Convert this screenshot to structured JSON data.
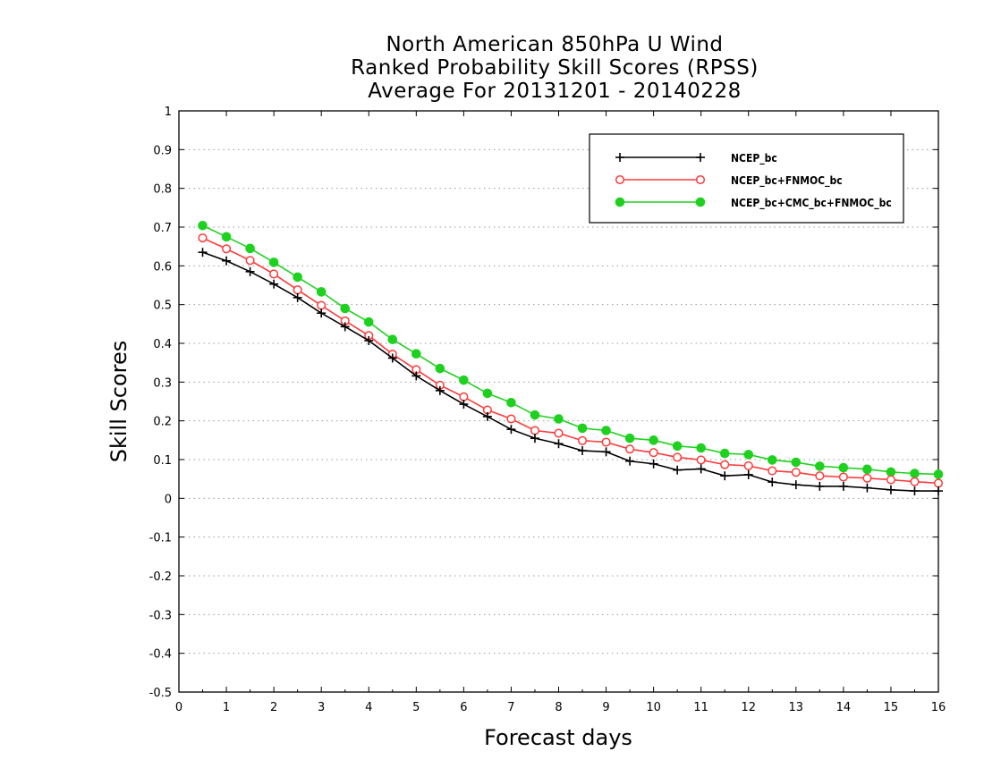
{
  "chart_data": {
    "type": "line",
    "title": [
      "North American 850hPa U Wind",
      "Ranked Probability Skill Scores (RPSS)",
      "Average For 20131201 - 20140228"
    ],
    "xlabel": "Forecast days",
    "ylabel": "Skill Scores",
    "xlim": [
      0,
      16
    ],
    "ylim": [
      -0.5,
      1
    ],
    "xticks": [
      "0",
      "1",
      "2",
      "3",
      "4",
      "5",
      "6",
      "7",
      "8",
      "9",
      "10",
      "11",
      "12",
      "13",
      "14",
      "15",
      "16"
    ],
    "yticks": [
      "-0.5",
      "-0.4",
      "-0.3",
      "-0.2",
      "-0.1",
      "0",
      "0.1",
      "0.2",
      "0.3",
      "0.4",
      "0.5",
      "0.6",
      "0.7",
      "0.8",
      "0.9",
      "1"
    ],
    "grid": "horizontal dotted",
    "legend_position": "top-right",
    "x": [
      0.5,
      1,
      1.5,
      2,
      2.5,
      3,
      3.5,
      4,
      4.5,
      5,
      5.5,
      6,
      6.5,
      7,
      7.5,
      8,
      8.5,
      9,
      9.5,
      10,
      10.5,
      11,
      11.5,
      12,
      12.5,
      13,
      13.5,
      14,
      14.5,
      15,
      15.5,
      16
    ],
    "series": [
      {
        "name": "NCEP_bc",
        "color": "#000000",
        "marker": "plus",
        "values": [
          0.635,
          0.613,
          0.585,
          0.553,
          0.518,
          0.478,
          0.443,
          0.407,
          0.362,
          0.316,
          0.278,
          0.243,
          0.211,
          0.178,
          0.155,
          0.141,
          0.123,
          0.12,
          0.096,
          0.089,
          0.073,
          0.076,
          0.058,
          0.061,
          0.042,
          0.035,
          0.031,
          0.031,
          0.027,
          0.022,
          0.019,
          0.019
        ]
      },
      {
        "name": "NCEP_bc+FNMOC_bc",
        "color": "#ff3a3a",
        "marker": "open-circle",
        "values": [
          0.672,
          0.644,
          0.614,
          0.579,
          0.538,
          0.498,
          0.458,
          0.42,
          0.372,
          0.332,
          0.292,
          0.262,
          0.228,
          0.205,
          0.175,
          0.168,
          0.149,
          0.145,
          0.127,
          0.118,
          0.106,
          0.099,
          0.087,
          0.084,
          0.071,
          0.067,
          0.058,
          0.055,
          0.052,
          0.048,
          0.043,
          0.039
        ]
      },
      {
        "name": "NCEP_bc+CMC_bc+FNMOC_bc",
        "color": "#1fd11f",
        "marker": "filled-circle",
        "values": [
          0.704,
          0.675,
          0.645,
          0.609,
          0.571,
          0.533,
          0.49,
          0.455,
          0.41,
          0.373,
          0.335,
          0.305,
          0.271,
          0.247,
          0.215,
          0.205,
          0.181,
          0.175,
          0.155,
          0.15,
          0.135,
          0.13,
          0.116,
          0.113,
          0.099,
          0.093,
          0.083,
          0.079,
          0.075,
          0.068,
          0.064,
          0.062
        ]
      }
    ]
  }
}
